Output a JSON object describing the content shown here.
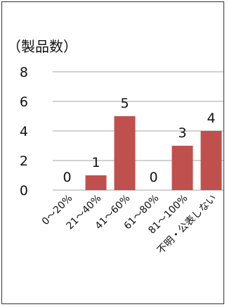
{
  "chart_data": {
    "type": "bar",
    "unit_label": "（製品数）",
    "categories": [
      "0～20%",
      "21～40%",
      "41～60%",
      "61～80%",
      "81～100%",
      "不明・公表しない"
    ],
    "values": [
      0,
      1,
      5,
      0,
      3,
      4
    ],
    "ylim": [
      0,
      8
    ],
    "yticks": [
      "0",
      "2",
      "4",
      "6",
      "8"
    ],
    "grid": true,
    "bar_color": "#c0504d",
    "gridline_color": "#a6a6a6"
  }
}
